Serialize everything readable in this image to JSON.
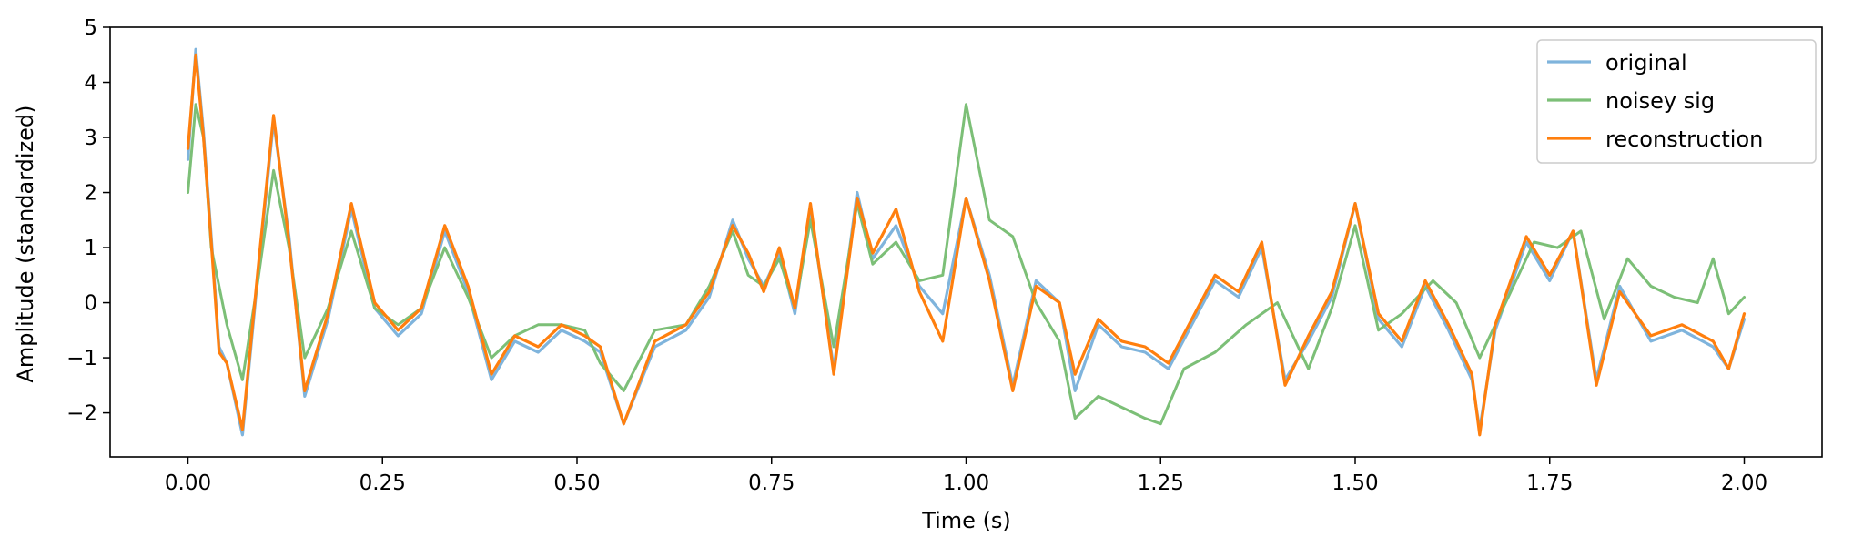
{
  "chart_data": {
    "type": "line",
    "title": "",
    "xlabel": "Time (s)",
    "ylabel": "Amplitude (standardized)",
    "xlim": [
      -0.1,
      2.1
    ],
    "ylim": [
      -2.8,
      5.0
    ],
    "xticks": [
      0.0,
      0.25,
      0.5,
      0.75,
      1.0,
      1.25,
      1.5,
      1.75,
      2.0
    ],
    "xtick_labels": [
      "0.00",
      "0.25",
      "0.50",
      "0.75",
      "1.00",
      "1.25",
      "1.50",
      "1.75",
      "2.00"
    ],
    "yticks": [
      -2,
      -1,
      0,
      1,
      2,
      3,
      4,
      5
    ],
    "ytick_labels": [
      "−2",
      "−1",
      "0",
      "1",
      "2",
      "3",
      "4",
      "5"
    ],
    "grid": false,
    "legend_position": "top-right",
    "series": [
      {
        "name": "original",
        "color": "#7fb4dc",
        "x": [
          0.0,
          0.01,
          0.02,
          0.03,
          0.04,
          0.05,
          0.07,
          0.09,
          0.11,
          0.13,
          0.15,
          0.18,
          0.21,
          0.24,
          0.27,
          0.3,
          0.33,
          0.36,
          0.39,
          0.42,
          0.45,
          0.48,
          0.51,
          0.53,
          0.56,
          0.6,
          0.64,
          0.67,
          0.7,
          0.72,
          0.74,
          0.76,
          0.78,
          0.8,
          0.83,
          0.86,
          0.88,
          0.91,
          0.94,
          0.97,
          1.0,
          1.03,
          1.06,
          1.09,
          1.12,
          1.14,
          1.17,
          1.2,
          1.23,
          1.26,
          1.29,
          1.32,
          1.35,
          1.38,
          1.41,
          1.44,
          1.47,
          1.5,
          1.53,
          1.56,
          1.59,
          1.62,
          1.65,
          1.66,
          1.68,
          1.72,
          1.75,
          1.78,
          1.81,
          1.84,
          1.88,
          1.92,
          1.96,
          1.98,
          2.0
        ],
        "y": [
          2.6,
          4.6,
          3.1,
          1.2,
          -0.8,
          -1.1,
          -2.4,
          0.5,
          3.3,
          1.2,
          -1.7,
          -0.3,
          1.7,
          -0.1,
          -0.6,
          -0.2,
          1.3,
          0.2,
          -1.4,
          -0.7,
          -0.9,
          -0.5,
          -0.7,
          -0.9,
          -2.2,
          -0.8,
          -0.5,
          0.1,
          1.5,
          0.8,
          0.3,
          0.9,
          -0.2,
          1.7,
          -1.2,
          2.0,
          0.8,
          1.4,
          0.3,
          -0.2,
          1.9,
          0.5,
          -1.5,
          0.4,
          0.0,
          -1.6,
          -0.4,
          -0.8,
          -0.9,
          -1.2,
          -0.4,
          0.4,
          0.1,
          1.0,
          -1.4,
          -0.7,
          0.1,
          1.8,
          -0.3,
          -0.8,
          0.3,
          -0.5,
          -1.4,
          -2.3,
          -0.5,
          1.1,
          0.4,
          1.3,
          -1.4,
          0.3,
          -0.7,
          -0.5,
          -0.8,
          -1.2,
          -0.3
        ]
      },
      {
        "name": "noisey sig",
        "color": "#7cbf77",
        "x": [
          0.0,
          0.01,
          0.02,
          0.03,
          0.05,
          0.07,
          0.09,
          0.11,
          0.13,
          0.15,
          0.18,
          0.21,
          0.24,
          0.27,
          0.3,
          0.33,
          0.36,
          0.39,
          0.42,
          0.45,
          0.48,
          0.51,
          0.53,
          0.56,
          0.6,
          0.64,
          0.67,
          0.7,
          0.72,
          0.74,
          0.76,
          0.78,
          0.8,
          0.83,
          0.86,
          0.88,
          0.91,
          0.94,
          0.97,
          1.0,
          1.03,
          1.06,
          1.09,
          1.12,
          1.14,
          1.17,
          1.2,
          1.23,
          1.25,
          1.28,
          1.32,
          1.36,
          1.4,
          1.44,
          1.47,
          1.5,
          1.53,
          1.56,
          1.6,
          1.63,
          1.66,
          1.7,
          1.73,
          1.76,
          1.79,
          1.82,
          1.85,
          1.88,
          1.91,
          1.94,
          1.96,
          1.98,
          2.0
        ],
        "y": [
          2.0,
          3.6,
          3.0,
          1.0,
          -0.4,
          -1.4,
          0.4,
          2.4,
          1.0,
          -1.0,
          -0.1,
          1.3,
          -0.1,
          -0.4,
          -0.1,
          1.0,
          0.1,
          -1.0,
          -0.6,
          -0.4,
          -0.4,
          -0.5,
          -1.1,
          -1.6,
          -0.5,
          -0.4,
          0.3,
          1.3,
          0.5,
          0.3,
          0.8,
          -0.1,
          1.5,
          -0.8,
          1.8,
          0.7,
          1.1,
          0.4,
          0.5,
          3.6,
          1.5,
          1.2,
          0.0,
          -0.7,
          -2.1,
          -1.7,
          -1.9,
          -2.1,
          -2.2,
          -1.2,
          -0.9,
          -0.4,
          0.0,
          -1.2,
          -0.1,
          1.4,
          -0.5,
          -0.2,
          0.4,
          0.0,
          -1.0,
          0.2,
          1.1,
          1.0,
          1.3,
          -0.3,
          0.8,
          0.3,
          0.1,
          0.0,
          0.8,
          -0.2,
          0.1
        ]
      },
      {
        "name": "reconstruction",
        "color": "#ff7f0e",
        "x": [
          0.0,
          0.01,
          0.02,
          0.03,
          0.04,
          0.05,
          0.07,
          0.09,
          0.11,
          0.13,
          0.15,
          0.18,
          0.21,
          0.24,
          0.27,
          0.3,
          0.33,
          0.36,
          0.39,
          0.42,
          0.45,
          0.48,
          0.51,
          0.53,
          0.56,
          0.6,
          0.64,
          0.67,
          0.7,
          0.72,
          0.74,
          0.76,
          0.78,
          0.8,
          0.83,
          0.86,
          0.88,
          0.91,
          0.94,
          0.97,
          1.0,
          1.03,
          1.06,
          1.09,
          1.12,
          1.14,
          1.17,
          1.2,
          1.23,
          1.26,
          1.29,
          1.32,
          1.35,
          1.38,
          1.41,
          1.44,
          1.47,
          1.5,
          1.53,
          1.56,
          1.59,
          1.62,
          1.65,
          1.66,
          1.68,
          1.72,
          1.75,
          1.78,
          1.81,
          1.84,
          1.88,
          1.92,
          1.96,
          1.98,
          2.0
        ],
        "y": [
          2.8,
          4.5,
          3.0,
          1.1,
          -0.9,
          -1.1,
          -2.3,
          0.6,
          3.4,
          1.1,
          -1.6,
          -0.2,
          1.8,
          0.0,
          -0.5,
          -0.1,
          1.4,
          0.3,
          -1.3,
          -0.6,
          -0.8,
          -0.4,
          -0.6,
          -0.8,
          -2.2,
          -0.7,
          -0.4,
          0.2,
          1.4,
          0.9,
          0.2,
          1.0,
          -0.1,
          1.8,
          -1.3,
          1.9,
          0.9,
          1.7,
          0.2,
          -0.7,
          1.9,
          0.4,
          -1.6,
          0.3,
          0.0,
          -1.3,
          -0.3,
          -0.7,
          -0.8,
          -1.1,
          -0.3,
          0.5,
          0.2,
          1.1,
          -1.5,
          -0.6,
          0.2,
          1.8,
          -0.2,
          -0.7,
          0.4,
          -0.4,
          -1.3,
          -2.4,
          -0.4,
          1.2,
          0.5,
          1.3,
          -1.5,
          0.2,
          -0.6,
          -0.4,
          -0.7,
          -1.2,
          -0.2
        ]
      }
    ]
  }
}
